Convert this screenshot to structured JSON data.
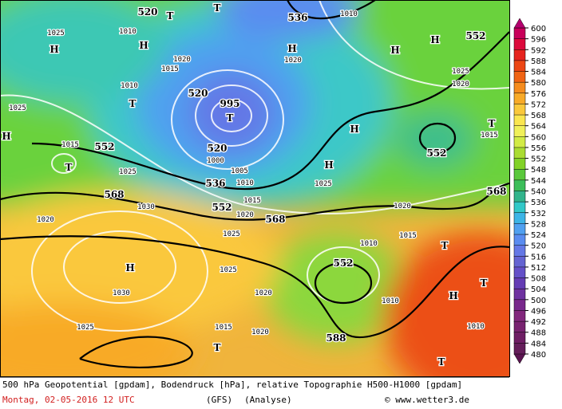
{
  "colorbar": {
    "labels": [
      600,
      596,
      592,
      588,
      584,
      580,
      576,
      572,
      568,
      564,
      560,
      556,
      552,
      548,
      544,
      540,
      536,
      532,
      528,
      524,
      520,
      516,
      512,
      508,
      504,
      500,
      496,
      492,
      488,
      484,
      480
    ],
    "colors": [
      "#c8005a",
      "#dc0a3c",
      "#e6231e",
      "#ec4614",
      "#f06414",
      "#f58c1e",
      "#f8aa28",
      "#fac83c",
      "#fae650",
      "#f0f05a",
      "#d2eb46",
      "#aadc32",
      "#82d228",
      "#5ac83c",
      "#3cbe5a",
      "#32b48c",
      "#32c8c8",
      "#3cb4e6",
      "#50a0f0",
      "#5a8cf0",
      "#6478e6",
      "#6464d2",
      "#6450c8",
      "#643cb4",
      "#6e32a0",
      "#78288c",
      "#82287d",
      "#782370",
      "#6e1e64",
      "#641e5a"
    ]
  },
  "map_labels": [
    "H",
    "H",
    "T",
    "T",
    "520",
    "1025",
    "1010",
    "1020",
    "1015",
    "1010",
    "T",
    "520",
    "T",
    "995",
    "520",
    "1000",
    "536",
    "552",
    "1005",
    "1010",
    "1015",
    "1020",
    "568",
    "1025",
    "536",
    "1010",
    "H",
    "1020",
    "H",
    "H",
    "552",
    "1025",
    "1020",
    "H",
    "H",
    "552",
    "T",
    "1015",
    "568",
    "552",
    "T",
    "1015",
    "1025",
    "568",
    "1030",
    "1020",
    "H",
    "1030",
    "1025",
    "1025",
    "1020",
    "1015",
    "1020",
    "T",
    "588",
    "552",
    "1010",
    "1015",
    "1020",
    "1025",
    "1010",
    "T",
    "H",
    "1010",
    "T",
    "T",
    "1025",
    "H"
  ],
  "footer": {
    "description": "500 hPa Geopotential [gpdam], Bodendruck [hPa], relative Topographie H500-H1000 [gpdam]",
    "date": "Montag, 02-05-2016  12 UTC",
    "model": "(GFS)",
    "run": "(Analyse)",
    "credit": "© www.wetter3.de"
  }
}
